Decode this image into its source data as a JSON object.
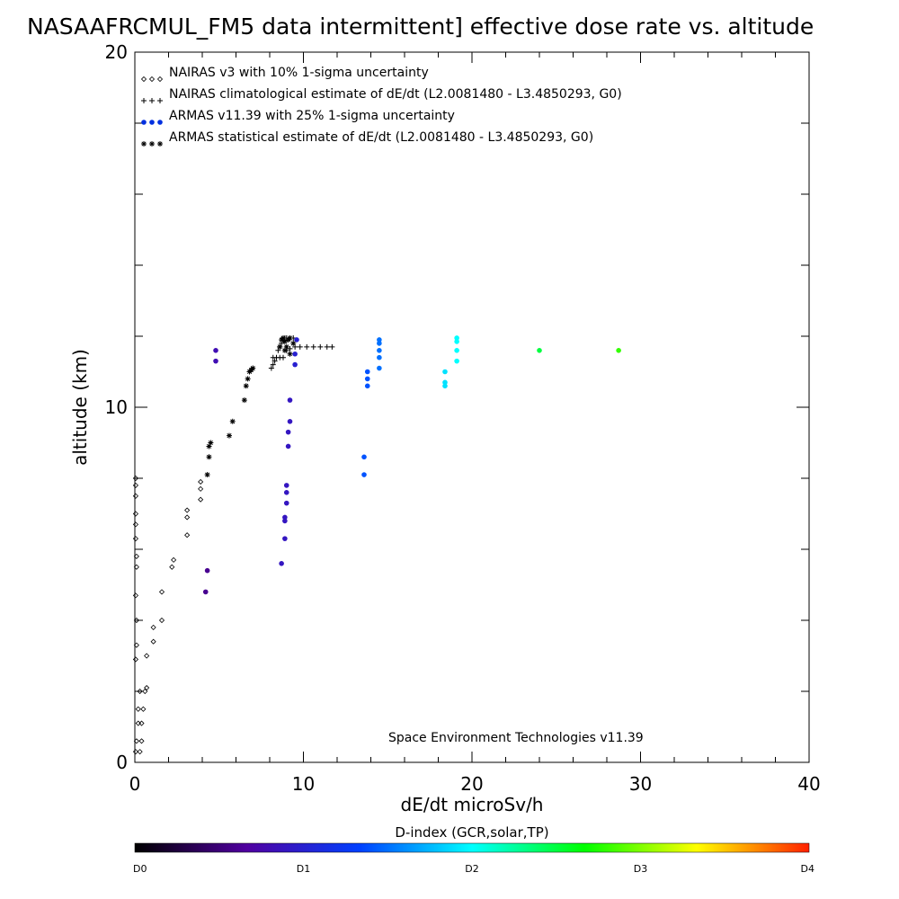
{
  "chart_data": {
    "type": "scatter",
    "title": "NASAAFRCMUL_FM5 data intermittent] effective dose rate vs. altitude",
    "xlabel": "dE/dt microSv/h",
    "ylabel": "altitude (km)",
    "xlim": [
      0,
      40
    ],
    "ylim": [
      0,
      20
    ],
    "x_ticks": [
      "0",
      "10",
      "20",
      "30",
      "40"
    ],
    "y_ticks": [
      "0",
      "10",
      "20"
    ],
    "legend_position": "top-left",
    "legend": [
      {
        "marker": "◇◇◇",
        "label": "NAIRAS v3 with 10% 1-sigma uncertainty"
      },
      {
        "marker": "+++",
        "label": "NAIRAS climatological estimate of dE/dt (L2.0081480 - L3.4850293, G0)"
      },
      {
        "marker": "●●●",
        "label": "ARMAS v11.39 with 25% 1-sigma uncertainty"
      },
      {
        "marker": "✱✱✱",
        "label": "ARMAS statistical estimate of dE/dt (L2.0081480 - L3.4850293, G0)"
      }
    ],
    "annotation": "Space Environment Technologies v11.39",
    "colorbar": {
      "title": "D-index (GCR,solar,TP)",
      "labels": [
        "D0",
        "D1",
        "D2",
        "D3",
        "D4"
      ],
      "positions": [
        0,
        1,
        2,
        3,
        4
      ],
      "colors": [
        "#000000",
        "#5000a0",
        "#0040ff",
        "#00ffff",
        "#00ff00",
        "#ffff00",
        "#ff2000"
      ]
    },
    "series": [
      {
        "name": "NAIRAS v3 with 10% 1-sigma uncertainty",
        "marker": "diamond",
        "points": [
          [
            0.05,
            0.3
          ],
          [
            0.1,
            0.6
          ],
          [
            0.2,
            1.1
          ],
          [
            0.2,
            1.5
          ],
          [
            0.3,
            2.0
          ],
          [
            0.3,
            0.3
          ],
          [
            0.4,
            0.6
          ],
          [
            0.4,
            1.1
          ],
          [
            0.5,
            1.5
          ],
          [
            0.6,
            2.0
          ],
          [
            0.7,
            2.1
          ],
          [
            0.7,
            3.0
          ],
          [
            1.1,
            3.4
          ],
          [
            1.1,
            3.8
          ],
          [
            1.6,
            4.0
          ],
          [
            1.6,
            4.8
          ],
          [
            2.2,
            5.5
          ],
          [
            2.3,
            5.7
          ],
          [
            3.1,
            6.4
          ],
          [
            3.1,
            6.9
          ],
          [
            3.1,
            7.1
          ],
          [
            3.9,
            7.4
          ],
          [
            3.9,
            7.7
          ],
          [
            3.9,
            7.9
          ],
          [
            0.05,
            2.9
          ],
          [
            0.1,
            3.3
          ],
          [
            0.1,
            4.0
          ],
          [
            0.05,
            4.7
          ],
          [
            0.1,
            5.5
          ],
          [
            0.1,
            5.8
          ],
          [
            0.05,
            6.3
          ],
          [
            0.05,
            6.7
          ],
          [
            0.05,
            7.0
          ],
          [
            0.05,
            7.5
          ],
          [
            0.05,
            7.8
          ],
          [
            0.05,
            8.0
          ]
        ]
      },
      {
        "name": "NAIRAS climatological estimate of dE/dt (L2.0081480 - L3.4850293, G0)",
        "marker": "plus",
        "points": [
          [
            8.5,
            11.6
          ],
          [
            8.6,
            11.7
          ],
          [
            8.7,
            11.8
          ],
          [
            8.8,
            11.9
          ],
          [
            8.9,
            11.95
          ],
          [
            9.0,
            11.95
          ],
          [
            9.2,
            11.95
          ],
          [
            9.4,
            11.95
          ],
          [
            9.0,
            11.6
          ],
          [
            9.2,
            11.65
          ],
          [
            9.5,
            11.7
          ],
          [
            9.8,
            11.7
          ],
          [
            10.2,
            11.7
          ],
          [
            10.6,
            11.7
          ],
          [
            11.0,
            11.7
          ],
          [
            11.4,
            11.7
          ],
          [
            11.7,
            11.7
          ],
          [
            8.2,
            11.4
          ],
          [
            8.4,
            11.4
          ],
          [
            8.6,
            11.4
          ],
          [
            8.8,
            11.4
          ],
          [
            8.1,
            11.1
          ],
          [
            8.2,
            11.2
          ],
          [
            8.3,
            11.3
          ]
        ]
      },
      {
        "name": "ARMAS v11.39 with 25% 1-sigma uncertainty",
        "marker": "dot",
        "points": [
          {
            "x": 4.8,
            "y": 11.6,
            "d": 0.8
          },
          {
            "x": 4.8,
            "y": 11.3,
            "d": 0.8
          },
          {
            "x": 4.3,
            "y": 5.4,
            "d": 0.6
          },
          {
            "x": 4.2,
            "y": 4.8,
            "d": 0.6
          },
          {
            "x": 8.7,
            "y": 5.6,
            "d": 0.9
          },
          {
            "x": 8.9,
            "y": 6.3,
            "d": 0.9
          },
          {
            "x": 8.9,
            "y": 6.8,
            "d": 0.9
          },
          {
            "x": 8.9,
            "y": 6.9,
            "d": 0.9
          },
          {
            "x": 9.0,
            "y": 7.3,
            "d": 0.9
          },
          {
            "x": 9.0,
            "y": 7.6,
            "d": 0.9
          },
          {
            "x": 9.0,
            "y": 7.8,
            "d": 0.9
          },
          {
            "x": 9.1,
            "y": 8.9,
            "d": 0.9
          },
          {
            "x": 9.1,
            "y": 9.3,
            "d": 0.9
          },
          {
            "x": 9.2,
            "y": 9.6,
            "d": 0.9
          },
          {
            "x": 9.2,
            "y": 10.2,
            "d": 0.9
          },
          {
            "x": 9.5,
            "y": 11.2,
            "d": 1.0
          },
          {
            "x": 9.5,
            "y": 11.5,
            "d": 1.0
          },
          {
            "x": 9.6,
            "y": 11.9,
            "d": 1.0
          },
          {
            "x": 13.6,
            "y": 8.1,
            "d": 1.4
          },
          {
            "x": 13.6,
            "y": 8.6,
            "d": 1.4
          },
          {
            "x": 13.8,
            "y": 10.6,
            "d": 1.4
          },
          {
            "x": 13.8,
            "y": 10.8,
            "d": 1.4
          },
          {
            "x": 13.8,
            "y": 11.0,
            "d": 1.4
          },
          {
            "x": 14.5,
            "y": 11.1,
            "d": 1.5
          },
          {
            "x": 14.5,
            "y": 11.4,
            "d": 1.5
          },
          {
            "x": 14.5,
            "y": 11.6,
            "d": 1.5
          },
          {
            "x": 14.5,
            "y": 11.8,
            "d": 1.5
          },
          {
            "x": 14.5,
            "y": 11.9,
            "d": 1.5
          },
          {
            "x": 18.4,
            "y": 10.6,
            "d": 1.9
          },
          {
            "x": 18.4,
            "y": 10.7,
            "d": 1.9
          },
          {
            "x": 18.4,
            "y": 11.0,
            "d": 1.9
          },
          {
            "x": 19.1,
            "y": 11.3,
            "d": 2.0
          },
          {
            "x": 19.1,
            "y": 11.6,
            "d": 2.0
          },
          {
            "x": 19.1,
            "y": 11.85,
            "d": 2.0
          },
          {
            "x": 19.1,
            "y": 11.95,
            "d": 2.0
          },
          {
            "x": 24.0,
            "y": 11.6,
            "d": 2.5
          },
          {
            "x": 28.7,
            "y": 11.6,
            "d": 2.8
          }
        ]
      },
      {
        "name": "ARMAS statistical estimate of dE/dt (L2.0081480 - L3.4850293, G0)",
        "marker": "asterisk",
        "points": [
          [
            4.3,
            8.1
          ],
          [
            4.4,
            8.6
          ],
          [
            4.4,
            8.9
          ],
          [
            4.5,
            9.0
          ],
          [
            5.6,
            9.2
          ],
          [
            5.8,
            9.6
          ],
          [
            6.5,
            10.2
          ],
          [
            6.6,
            10.6
          ],
          [
            6.7,
            10.8
          ],
          [
            6.8,
            11.0
          ],
          [
            6.9,
            11.05
          ],
          [
            7.0,
            11.1
          ],
          [
            8.6,
            11.7
          ],
          [
            8.7,
            11.9
          ],
          [
            8.8,
            11.95
          ],
          [
            8.9,
            11.85
          ],
          [
            9.0,
            11.7
          ],
          [
            9.1,
            11.9
          ],
          [
            9.2,
            11.95
          ],
          [
            9.4,
            11.8
          ],
          [
            9.2,
            11.5
          ],
          [
            8.9,
            11.6
          ]
        ]
      }
    ]
  }
}
